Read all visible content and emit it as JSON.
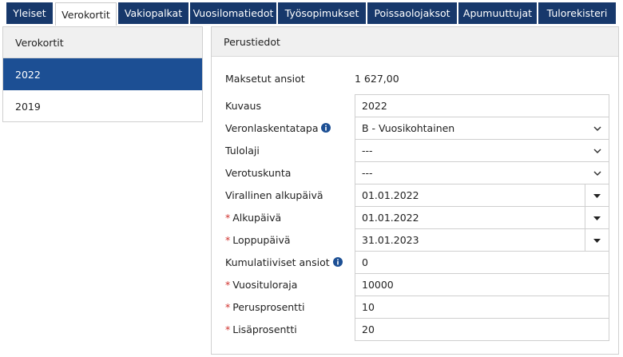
{
  "tabs": [
    {
      "label": "Yleiset"
    },
    {
      "label": "Verokortit",
      "active": true
    },
    {
      "label": "Vakiopalkat"
    },
    {
      "label": "Vuosilomatiedot"
    },
    {
      "label": "Työsopimukset"
    },
    {
      "label": "Poissaolojaksot"
    },
    {
      "label": "Apumuuttujat"
    },
    {
      "label": "Tulorekisteri"
    }
  ],
  "left_panel": {
    "title": "Verokortit",
    "items": [
      {
        "label": "2022",
        "selected": true
      },
      {
        "label": "2019"
      }
    ]
  },
  "right_panel": {
    "title": "Perustiedot",
    "summary": {
      "label": "Maksetut ansiot",
      "value": "1 627,00"
    },
    "fields": [
      {
        "label": "Kuvaus",
        "value": "2022",
        "control": "text"
      },
      {
        "label": "Veronlaskentatapa",
        "value": "B - Vuosikohtainen",
        "control": "select",
        "info": true
      },
      {
        "label": "Tulolaji",
        "value": "---",
        "control": "select"
      },
      {
        "label": "Verotuskunta",
        "value": "---",
        "control": "select"
      },
      {
        "label": "Virallinen alkupäivä",
        "value": "01.01.2022",
        "control": "date"
      },
      {
        "mark": "*",
        "label": "Alkupäivä",
        "value": "01.01.2022",
        "control": "date"
      },
      {
        "mark": "*",
        "label": "Loppupäivä",
        "value": "31.01.2023",
        "control": "date"
      },
      {
        "label": "Kumulatiiviset ansiot",
        "value": "0",
        "control": "text",
        "info": true
      },
      {
        "mark": "*",
        "label": "Vuosituloraja",
        "value": "10000",
        "control": "text"
      },
      {
        "mark": "*",
        "label": "Perusprosentti",
        "value": "10",
        "control": "text"
      },
      {
        "mark": "*",
        "label": "Lisäprosentti",
        "value": "20",
        "control": "text"
      }
    ]
  }
}
